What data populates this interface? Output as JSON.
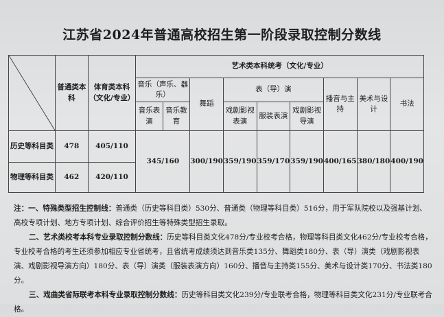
{
  "title": "江苏省2024年普通高校招生第一阶段录取控制分数线",
  "table": {
    "col_general": "普通类本科",
    "col_sports": "体育类本科（文化/专业）",
    "col_art": "艺术类本科统考（文化/专业）",
    "music_group": "音乐（声乐、器乐）",
    "music_perf": "音乐表演",
    "music_edu": "音乐教育",
    "dance": "舞蹈",
    "acting_group": "表（导）演",
    "drama_acting": "戏剧影视表演",
    "costume": "服装表演",
    "drama_directing": "戏剧影视导演",
    "broadcast": "播音与主持",
    "fine_arts": "美术与设计",
    "calligraphy": "书法",
    "rows": [
      {
        "label": "历史等科目类",
        "general": "478",
        "sports": "405/110"
      },
      {
        "label": "物理等科目类",
        "general": "462",
        "sports": "420/110"
      }
    ],
    "art_shared": {
      "music": "345/160",
      "dance": "300/190",
      "drama_acting": "359/190",
      "costume": "359/170",
      "drama_directing": "359/190",
      "broadcast": "400/165",
      "fine_arts": "380/180",
      "calligraphy": "400/190"
    }
  },
  "notes": {
    "n1_head": "注：一、特殊类型招生控制线：",
    "n1_body": "普通类（历史等科目类）530分、普通类（物理等科目类）516分，用于军队院校以及强基计划、高校专项计划、地方专项计划、综合评价招生等特殊类型招生录取。",
    "n2_head": "二、艺术类校考本科专业录取控制分数线：",
    "n2_body": "历史等科目类文化478分/专业校考合格，物理等科目类文化462分/专业校考合格，专业校考合格的考生还须参加相应专业省统考，且省统考成绩须达到音乐类135分、舞蹈类180分、表（导）演类（戏剧影视表演、戏剧影视导演方向）180分、表（导）演类（服装表演方向）160分、播音与主持类155分、美术与设计类170分、书法类180分。",
    "n3_head": "三、戏曲类省际联考本科专业录取控制分数线：",
    "n3_body": "历史等科目类文化239分/专业联考合格，物理等科目类文化231分/专业联考合格。"
  }
}
